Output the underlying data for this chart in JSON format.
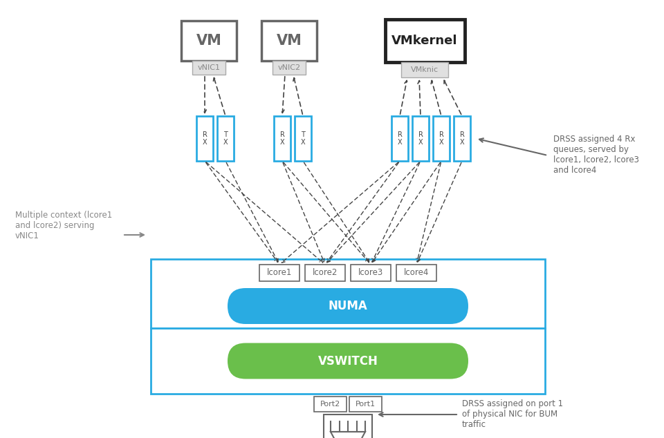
{
  "bg_color": "#ffffff",
  "blue_color": "#29ABE2",
  "green_color": "#6ABF4B",
  "dark_gray": "#444444",
  "mid_gray": "#666666",
  "light_gray": "#888888",
  "vm1_label": "VM",
  "vm2_label": "VM",
  "vmkernel_label": "VMkernel",
  "vnic1_label": "vNIC1",
  "vnic2_label": "vNIC2",
  "vmknic_label": "VMknic",
  "lcore_labels": [
    "lcore1",
    "lcore2",
    "lcore3",
    "lcore4"
  ],
  "numa_label": "NUMA",
  "vswitch_label": "VSWITCH",
  "port_labels": [
    "Port2",
    "Port1"
  ],
  "annotation_right1": "DRSS assigned 4 Rx\nqueues, served by\nlcore1, lcore2, lcore3\nand lcore4",
  "annotation_left": "Multiple context (lcore1\nand lcore2) serving\nvNIC1",
  "annotation_right2": "DRSS assigned on port 1\nof physical NIC for BUM\ntraffic"
}
